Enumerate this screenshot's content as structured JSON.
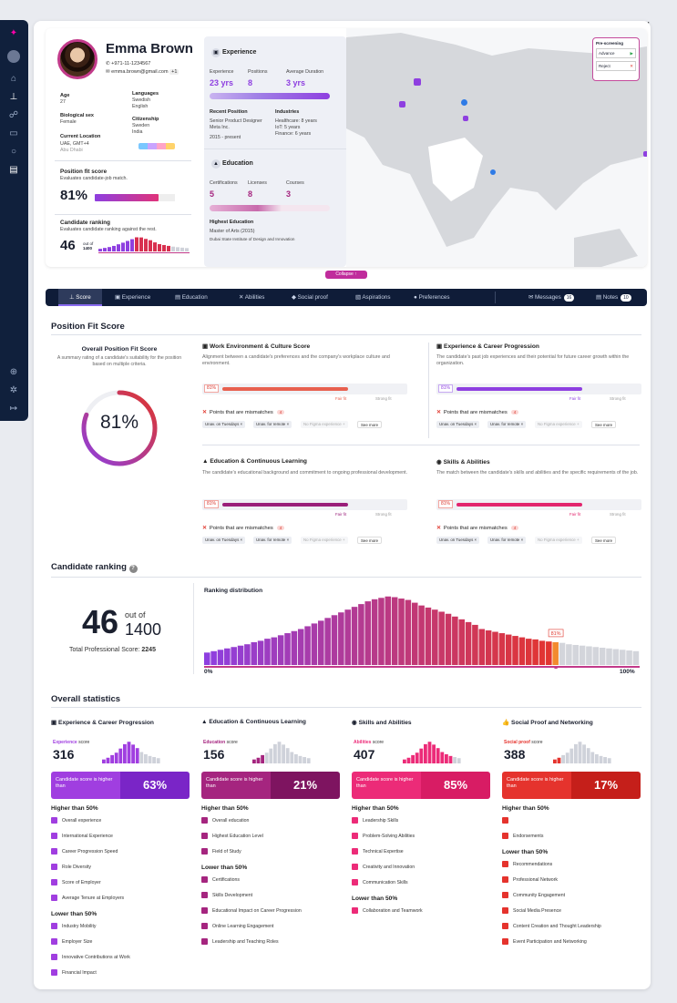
{
  "profile": {
    "name": "Emma Brown",
    "phone": "+971-11-1234567",
    "email": "emma.brown@gmail.com",
    "email_more": "+1",
    "age_label": "Age",
    "age": "27",
    "sex_label": "Biological sex",
    "sex": "Female",
    "loc_label": "Current Location",
    "loc_country": "UAE, GMT+4",
    "loc_city": "Abu Dhabi",
    "lang_label": "Languages",
    "lang1": "Swedish",
    "lang2": "English",
    "cit_label": "Citizenship",
    "cit1": "Sweden",
    "cit2": "India",
    "pfs_label": "Position fit score",
    "pfs_desc": "Evaluates candidate-job match.",
    "pfs_value": "81%",
    "rank_label": "Candidate ranking",
    "rank_desc": "Evaluates candidate ranking against the rest.",
    "rank_value": "46",
    "rank_outof": "out of",
    "rank_total": "1400"
  },
  "experience": {
    "title": "Experience",
    "k1": "Experience",
    "k2": "Positions",
    "k3": "Average Duration",
    "v1": "23 yrs",
    "v2": "8",
    "v3": "3 yrs",
    "recent_label": "Recent Position",
    "recent_role": "Senior Product Designer",
    "recent_co": "Meta Inc.",
    "recent_dates": "2015 - present",
    "ind_label": "Industries",
    "ind1": "Healthcare: 8 years",
    "ind2": "IoT: 5 years",
    "ind3": "Finance: 6 years"
  },
  "education": {
    "title": "Education",
    "k1": "Certifications",
    "k2": "Licenses",
    "k3": "Courses",
    "v1": "5",
    "v2": "8",
    "v3": "3",
    "highest_label": "Highest Education",
    "degree": "Master of Arts (2015)",
    "school": "Dubai State Institute of Design and Innovation"
  },
  "prescreen": {
    "title": "Pre-screening",
    "advance": "Advance",
    "reject": "Reject"
  },
  "collapse": "Collapse",
  "tabs": {
    "t1": "Score",
    "t2": "Experience",
    "t3": "Education",
    "t4": "Abilities",
    "t5": "Social proof",
    "t6": "Aspirations",
    "t7": "Preferences",
    "messages": "Messages",
    "messages_count": "16",
    "notes": "Notes",
    "notes_count": "10"
  },
  "fit": {
    "section": "Position Fit Score",
    "overall_title": "Overall Position Fit Score",
    "overall_desc": "A summary rating of a candidate's suitability for the position based on multiple criteria.",
    "overall_value": "81%",
    "fair": "Fair fit",
    "strong": "Strong fit",
    "mismatch": "Points that are mismatches",
    "mis_count": "4",
    "chip1": "Unav. on Tuesdays ×",
    "chip2": "Unav. for remote ×",
    "chip3": "No Figma experience +",
    "more": "See more",
    "cards": [
      {
        "title": "Work Environment & Culture Score",
        "desc": "Alignment between a candidate's preferences and the company's workplace culture and environment.",
        "value": "81%",
        "color": "#e8604f"
      },
      {
        "title": "Experience & Career Progression",
        "desc": "The candidate's past job experiences and their potential for future career growth within the organization.",
        "value": "81%",
        "color": "#8e3fe0"
      },
      {
        "title": "Education & Continuous Learning",
        "desc": "The candidate's educational background and commitment to ongoing professional development.",
        "value": "81%",
        "color": "#9a1f7a"
      },
      {
        "title": "Skills & Abilities",
        "desc": "The match between the candidate's skills and abilities and the specific requirements of the job.",
        "value": "81%",
        "color": "#e2256e"
      }
    ]
  },
  "ranking": {
    "section": "Candidate ranking",
    "rank": "46",
    "outof": "out of",
    "total": "1400",
    "total_label": "Total Professional Score:",
    "total_value": "2245",
    "dist_title": "Ranking distribution",
    "marker": "81%",
    "axis_min": "0%",
    "axis_max": "100%"
  },
  "chart_data": {
    "type": "bar",
    "title": "Ranking distribution",
    "x_range": [
      "0%",
      "100%"
    ],
    "highlight": "81%",
    "values": [
      18,
      20,
      22,
      24,
      26,
      28,
      30,
      33,
      35,
      38,
      40,
      43,
      46,
      49,
      52,
      56,
      60,
      64,
      68,
      72,
      76,
      80,
      84,
      88,
      92,
      95,
      97,
      99,
      98,
      96,
      94,
      90,
      86,
      83,
      80,
      77,
      74,
      70,
      66,
      62,
      58,
      52,
      50,
      48,
      46,
      44,
      42,
      40,
      38,
      37,
      35,
      34,
      33,
      32,
      30,
      29,
      28,
      27,
      26,
      25,
      24,
      23,
      22,
      21,
      20
    ]
  },
  "stats": {
    "section": "Overall statistics",
    "higher_than": "Candidate score is higher than",
    "higher50": "Higher than 50%",
    "lower50": "Lower than 50%",
    "cols": [
      {
        "title": "Experience & Career Progression",
        "score_label": "Experience",
        "score_word": "score",
        "score": "316",
        "pct": "63%",
        "c1": "#a03ee0",
        "c2": "#7a25c7",
        "higher": [
          "Overall experience",
          "International Experience",
          "Career Progression Speed",
          "Role Diversity",
          "Score of Employer",
          "Average Tenure at Employers"
        ],
        "lower": [
          "Industry Mobility",
          "Employer Size",
          "Innovative Contributions at Work",
          "Financial Impact"
        ]
      },
      {
        "title": "Education & Continuous Learning",
        "score_label": "Education",
        "score_word": "score",
        "score": "156",
        "pct": "21%",
        "c1": "#a5257f",
        "c2": "#7e1460",
        "higher": [
          "Overall education",
          "Highest Education Level",
          "Field of Study"
        ],
        "lower": [
          "Certifications",
          "Skills Development",
          "Educational Impact on Career Progression",
          "Online Learning Engagement",
          "Leadership and Teaching Roles"
        ]
      },
      {
        "title": "Skills and Abilities",
        "score_label": "Abilities",
        "score_word": "score",
        "score": "407",
        "pct": "85%",
        "c1": "#ec2b78",
        "c2": "#d81c64",
        "higher": [
          "Leadership Skills",
          "Problem-Solving Abilities",
          "Technical Expertise",
          "Creativity and Innovation",
          "Communication Skills"
        ],
        "lower": [
          "Collaboration and Teamwork"
        ]
      },
      {
        "title": "Social Proof and Networking",
        "score_label": "Social proof",
        "score_word": "score",
        "score": "388",
        "pct": "17%",
        "c1": "#e5332d",
        "c2": "#c51f1a",
        "higher": [
          "",
          "Endorsements"
        ],
        "lower": [
          "Recommendations",
          "Professional Network",
          "Community Engagement",
          "Social Media Presence",
          "Content Creation and Thought Leadership",
          "Event Participation and Networking"
        ]
      }
    ]
  }
}
